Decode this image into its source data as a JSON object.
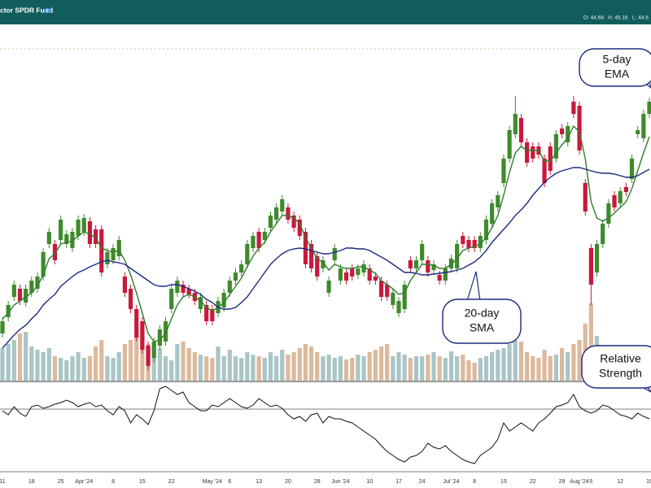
{
  "header": {
    "title": "ctor SPDR Fund",
    "quote": [
      "O: 44.68",
      "H: 45.16",
      "L: 44.6"
    ]
  },
  "chart_data": {
    "type": "candlestick",
    "categories": [
      "11",
      null,
      null,
      null,
      null,
      "18",
      null,
      null,
      null,
      null,
      "25",
      null,
      null,
      null,
      "Apr '24",
      null,
      null,
      null,
      null,
      "8",
      null,
      null,
      null,
      null,
      "15",
      null,
      null,
      null,
      null,
      "22",
      null,
      null,
      null,
      null,
      null,
      null,
      "May '24",
      null,
      null,
      "6",
      null,
      null,
      null,
      null,
      "13",
      null,
      null,
      null,
      null,
      "20",
      null,
      null,
      null,
      null,
      "28",
      null,
      null,
      null,
      "Jun '24",
      null,
      null,
      null,
      null,
      "10",
      null,
      null,
      null,
      null,
      "17",
      null,
      null,
      null,
      "24",
      null,
      null,
      null,
      null,
      "Jul '24",
      null,
      null,
      null,
      "8",
      null,
      null,
      null,
      null,
      "15",
      null,
      null,
      null,
      null,
      "22",
      null,
      null,
      null,
      null,
      "29",
      null,
      null,
      "Aug '24",
      null,
      "5",
      null,
      null,
      null,
      null,
      "12",
      null,
      null,
      null,
      null,
      "19"
    ],
    "open": [
      37.5,
      38,
      38.625,
      38.875,
      38.45,
      38.75,
      38.875,
      39.25,
      40.25,
      40.25,
      40.375,
      40.25,
      40.125,
      40.5,
      40.625,
      40.95,
      40.7,
      40.7,
      39.625,
      39.75,
      39.875,
      39.25,
      38.875,
      38.25,
      37.875,
      37.125,
      36.75,
      37.125,
      37.25,
      38.25,
      38.75,
      39,
      38.875,
      38.75,
      38.25,
      38.375,
      38.25,
      38.125,
      38.3,
      38.75,
      39.125,
      39.375,
      39.625,
      40.125,
      40.625,
      40.375,
      40.75,
      41,
      41.25,
      41.375,
      41.125,
      41,
      40.625,
      40.25,
      39.875,
      39.5,
      38.75,
      39.75,
      39.125,
      39.375,
      39.5,
      39.3,
      39.375,
      39.5,
      39.25,
      39.125,
      39,
      38.375,
      38.125,
      38.25,
      39.75,
      39.5,
      39.75,
      39.75,
      39.45,
      39.3,
      39.125,
      39.5,
      39.5,
      40.5,
      40.375,
      40.375,
      40.125,
      40.375,
      40.875,
      41.375,
      42.125,
      42.875,
      43.625,
      44.125,
      43.375,
      43.25,
      43.25,
      42.875,
      43.25,
      42.875,
      43.8,
      43.375,
      44.625,
      44.5,
      42.125,
      40.125,
      39.375,
      40.25,
      40.875,
      41.75,
      41.5,
      42,
      42.25,
      43.625,
      43.5,
      44.25
    ],
    "high": [
      38,
      38.5,
      39.125,
      39,
      39,
      39.25,
      39.375,
      40.125,
      40.75,
      40.375,
      41.125,
      40.675,
      40.75,
      41.125,
      41.175,
      41.075,
      40.825,
      40.825,
      40.125,
      40.25,
      40.5,
      39.375,
      39,
      38.375,
      38,
      37.25,
      37.375,
      37.75,
      38,
      39,
      39.25,
      39.125,
      39,
      38.875,
      38.75,
      38.5,
      38.375,
      38.625,
      38.875,
      39.25,
      39.5,
      39.75,
      40.375,
      40.625,
      40.75,
      40.75,
      41.25,
      41.5,
      41.75,
      41.5,
      41.25,
      41.125,
      40.75,
      40.375,
      40,
      39.875,
      39.25,
      40.25,
      39.625,
      39.5,
      39.625,
      39.625,
      39.75,
      39.625,
      39.375,
      39.25,
      39.125,
      38.875,
      38.625,
      39.125,
      39.875,
      39.875,
      40.375,
      39.875,
      39.75,
      39.425,
      39.625,
      39.925,
      40.375,
      40.625,
      40.5,
      40.5,
      40.625,
      41.125,
      41.625,
      41.875,
      43,
      43.875,
      44.8,
      44.25,
      43.5,
      43.375,
      43.375,
      43,
      43.375,
      43.75,
      43.925,
      44,
      44.8,
      44.625,
      42.25,
      40.25,
      40.375,
      41,
      41.625,
      41.875,
      42,
      42.125,
      43,
      43.875,
      44.375,
      44.75
    ],
    "low": [
      37.375,
      37.875,
      38.5,
      38.375,
      38.325,
      38.625,
      38.75,
      39.125,
      40.125,
      39.625,
      40.25,
      40.125,
      40,
      40.375,
      40.5,
      40.125,
      40.125,
      39.25,
      39.5,
      39.625,
      39.75,
      38.625,
      38.125,
      37.25,
      36.875,
      36.375,
      36.625,
      37,
      37.125,
      38.125,
      38.625,
      38.625,
      38.575,
      38.375,
      38.125,
      37.75,
      37.75,
      38,
      38.175,
      38.625,
      39,
      39.25,
      39.5,
      40,
      40,
      40.25,
      40.625,
      40.875,
      41.125,
      40.875,
      40.625,
      40.375,
      39.5,
      39.375,
      39.125,
      39.375,
      38.625,
      39.625,
      39,
      39,
      39.125,
      39.175,
      39.25,
      39,
      39,
      38.5,
      38.5,
      38.25,
      38,
      38.125,
      39.375,
      39.375,
      39.625,
      39.25,
      39.325,
      39,
      39,
      39.375,
      39.375,
      40.125,
      40,
      40,
      40,
      40.25,
      40.75,
      41.25,
      42,
      42.75,
      43.5,
      43.25,
      42.625,
      42.75,
      42.875,
      42,
      42.375,
      42.75,
      43.5,
      43.25,
      44.125,
      43,
      41.125,
      38.375,
      39.25,
      40.125,
      40.75,
      41.25,
      41.375,
      41.725,
      42.125,
      43.5,
      43.375,
      44.125
    ],
    "close": [
      37.875,
      38.375,
      39,
      38.5,
      38.875,
      39.125,
      39.25,
      40,
      40.625,
      39.75,
      41,
      40.55,
      40.625,
      41,
      41.05,
      40.25,
      40.25,
      39.375,
      40,
      40.125,
      40.375,
      38.75,
      38.25,
      37.375,
      37,
      36.5,
      37.25,
      37.625,
      37.875,
      38.875,
      39.125,
      38.75,
      38.7,
      38.5,
      38.625,
      37.875,
      37.875,
      38.5,
      38.75,
      39.125,
      39.375,
      39.625,
      40.25,
      40.5,
      40.125,
      40.625,
      41.125,
      41.375,
      41.625,
      41,
      40.75,
      40.5,
      39.625,
      39.5,
      39.25,
      39.75,
      39.125,
      40.125,
      39.5,
      39.125,
      39.25,
      39.5,
      39.625,
      39.125,
      39.125,
      38.625,
      38.625,
      38.75,
      38.5,
      39,
      39.5,
      39.75,
      40.25,
      39.375,
      39.625,
      39.125,
      39.5,
      39.8,
      40.25,
      40.25,
      40.125,
      40.125,
      40.5,
      41,
      41.5,
      41.75,
      42.875,
      43.75,
      44.25,
      43.375,
      42.75,
      42.875,
      43,
      42.125,
      42.5,
      43.625,
      43.625,
      43.875,
      44.25,
      43.125,
      41.25,
      39,
      40.25,
      40.875,
      41.5,
      41.375,
      41.875,
      41.85,
      42.875,
      43.75,
      44.25,
      44.625
    ],
    "up_color": "#3f8a2c",
    "down_color": "#c8193c",
    "ylim": [
      36,
      47
    ],
    "series": [
      {
        "color": "#2e7d2e",
        "values": [
          37.95,
          38.125,
          38.375,
          38.5,
          38.625,
          38.75,
          38.95,
          39.3,
          39.8,
          39.95,
          40.25,
          40.3,
          40.35,
          40.5,
          40.625,
          40.55,
          40.45,
          40.125,
          40.05,
          40,
          40.05,
          39.75,
          39.3,
          38.75,
          38.125,
          37.5,
          37.25,
          37.3,
          37.5,
          37.95,
          38.375,
          38.625,
          38.7,
          38.625,
          38.5,
          38.3,
          38.2,
          38.3,
          38.45,
          38.7,
          38.95,
          39.2,
          39.55,
          39.875,
          40.125,
          40.3,
          40.625,
          40.875,
          41.125,
          41.125,
          41.05,
          40.875,
          40.45,
          40.125,
          39.8,
          39.7,
          39.45,
          39.625,
          39.55,
          39.5,
          39.5,
          39.55,
          39.55,
          39.45,
          39.35,
          39.125,
          39,
          38.875,
          38.7,
          38.75,
          39.125,
          39.375,
          39.625,
          39.625,
          39.6,
          39.5,
          39.5,
          39.625,
          39.8,
          40.05,
          40.125,
          40.175,
          40.25,
          40.45,
          40.75,
          41.125,
          41.75,
          42.45,
          43.05,
          43.25,
          43.125,
          43.125,
          43.125,
          42.8,
          42.8,
          43.05,
          43.3,
          43.5,
          43.875,
          43.7,
          42.875,
          41.55,
          41.05,
          40.95,
          41.05,
          41.2,
          41.375,
          41.55,
          41.95,
          42.5,
          43.05,
          43.55
        ]
      },
      {
        "color": "#1c2a80",
        "values": [
          37.05,
          37.25,
          37.45,
          37.625,
          37.75,
          37.95,
          38.125,
          38.375,
          38.55,
          38.7,
          38.95,
          39.1,
          39.25,
          39.375,
          39.45,
          39.55,
          39.625,
          39.7,
          39.75,
          39.7,
          39.675,
          39.625,
          39.5,
          39.375,
          39.25,
          39.125,
          39,
          38.95,
          38.95,
          39,
          39,
          38.95,
          38.875,
          38.8,
          38.7,
          38.55,
          38.45,
          38.3,
          38.25,
          38.25,
          38.3,
          38.45,
          38.625,
          38.875,
          39.125,
          39.375,
          39.625,
          39.8,
          39.95,
          40.05,
          40.1,
          40.125,
          40.1,
          40.05,
          40,
          39.95,
          39.95,
          40,
          40.05,
          40.125,
          40.125,
          40.1,
          40.1,
          40.05,
          39.95,
          39.85,
          39.75,
          39.625,
          39.5,
          39.375,
          39.375,
          39.35,
          39.3,
          39.3,
          39.325,
          39.35,
          39.375,
          39.4,
          39.45,
          39.5,
          39.6,
          39.7,
          39.85,
          40.05,
          40.3,
          40.5,
          40.7,
          40.9,
          41.125,
          41.3,
          41.5,
          41.75,
          41.95,
          42.15,
          42.3,
          42.425,
          42.5,
          42.55,
          42.6,
          42.6,
          42.55,
          42.5,
          42.45,
          42.425,
          42.425,
          42.4,
          42.35,
          42.3,
          42.3,
          42.35,
          42.45,
          42.55
        ]
      }
    ],
    "volume": {
      "ylim": [
        0,
        100
      ],
      "up_color": "#a9c5c5",
      "down_color": "#dcb99c",
      "values": [
        40,
        45,
        50,
        58,
        60,
        42,
        38,
        35,
        40,
        30,
        28,
        25,
        30,
        35,
        28,
        30,
        42,
        50,
        30,
        28,
        35,
        45,
        50,
        55,
        60,
        45,
        38,
        40,
        30,
        25,
        45,
        48,
        40,
        35,
        32,
        30,
        28,
        42,
        30,
        38,
        30,
        28,
        35,
        32,
        30,
        28,
        35,
        30,
        38,
        32,
        35,
        40,
        45,
        42,
        35,
        30,
        32,
        28,
        30,
        26,
        28,
        32,
        30,
        35,
        38,
        42,
        45,
        30,
        35,
        32,
        28,
        30,
        30,
        32,
        35,
        30,
        28,
        36,
        30,
        32,
        25,
        22,
        28,
        30,
        35,
        38,
        40,
        45,
        50,
        48,
        35,
        30,
        28,
        38,
        30,
        32,
        40,
        35,
        45,
        50,
        70,
        95,
        55,
        40,
        30,
        28,
        25,
        32,
        28,
        30,
        35,
        38
      ]
    },
    "rs": {
      "ylim": [
        0,
        110
      ],
      "baseline": 77,
      "color": "#111111",
      "values": [
        75,
        70,
        80,
        72,
        68,
        80,
        82,
        78,
        80,
        83,
        85,
        88,
        85,
        80,
        83,
        85,
        80,
        82,
        75,
        70,
        80,
        75,
        60,
        70,
        65,
        58,
        75,
        102,
        105,
        100,
        95,
        98,
        85,
        80,
        75,
        75,
        82,
        80,
        85,
        90,
        85,
        80,
        78,
        82,
        90,
        85,
        80,
        82,
        78,
        70,
        65,
        68,
        62,
        70,
        72,
        60,
        68,
        65,
        65,
        62,
        60,
        55,
        50,
        45,
        40,
        32,
        25,
        20,
        15,
        12,
        18,
        20,
        25,
        35,
        30,
        28,
        32,
        25,
        20,
        15,
        12,
        10,
        20,
        25,
        30,
        40,
        60,
        50,
        55,
        60,
        55,
        50,
        60,
        65,
        72,
        80,
        82,
        85,
        95,
        80,
        75,
        72,
        75,
        82,
        80,
        75,
        70,
        68,
        65,
        72,
        68,
        65
      ]
    },
    "annotations": [
      {
        "lines": [
          "5-day",
          "EMA"
        ]
      },
      {
        "lines": [
          "20-day",
          "SMA"
        ]
      },
      {
        "lines": [
          "Relative",
          "Strength"
        ]
      }
    ]
  }
}
